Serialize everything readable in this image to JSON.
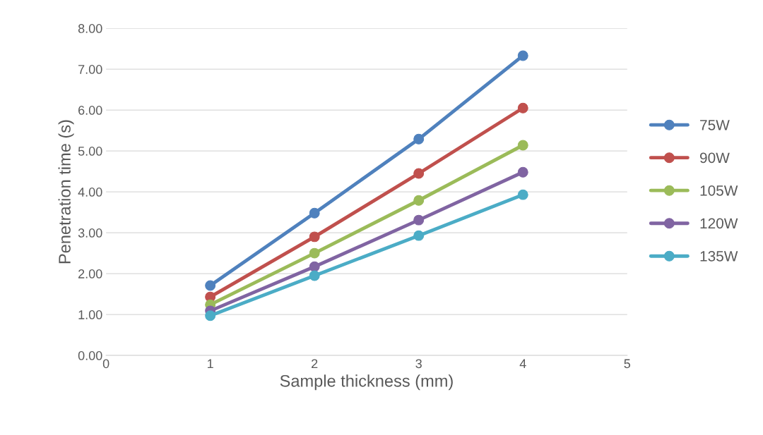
{
  "chart_data": {
    "type": "line",
    "xlabel": "Sample thickness (mm)",
    "ylabel": "Penetration time (s)",
    "x": [
      1,
      2,
      3,
      4
    ],
    "series": [
      {
        "name": "75W",
        "color": "#4f81bd",
        "values": [
          1.71,
          3.48,
          5.29,
          7.33
        ]
      },
      {
        "name": "90W",
        "color": "#c0504d",
        "values": [
          1.43,
          2.9,
          4.45,
          6.05
        ]
      },
      {
        "name": "105W",
        "color": "#9bbb59",
        "values": [
          1.24,
          2.5,
          3.79,
          5.14
        ]
      },
      {
        "name": "120W",
        "color": "#8064a2",
        "values": [
          1.09,
          2.17,
          3.31,
          4.48
        ]
      },
      {
        "name": "135W",
        "color": "#4bacc6",
        "values": [
          0.97,
          1.95,
          2.93,
          3.93
        ]
      }
    ],
    "xlim": [
      0,
      5
    ],
    "xticks": [
      0,
      1,
      2,
      3,
      4,
      5
    ],
    "ylim": [
      0,
      8
    ],
    "yticks": [
      {
        "value": 0,
        "label": "0.00"
      },
      {
        "value": 1,
        "label": "1.00"
      },
      {
        "value": 2,
        "label": "2.00"
      },
      {
        "value": 3,
        "label": "3.00"
      },
      {
        "value": 4,
        "label": "4.00"
      },
      {
        "value": 5,
        "label": "5.00"
      },
      {
        "value": 6,
        "label": "6.00"
      },
      {
        "value": 7,
        "label": "7.00"
      },
      {
        "value": 8,
        "label": "8.00"
      }
    ],
    "grid": "y",
    "legend": "right",
    "marker": "circle",
    "line_style": "solid"
  }
}
